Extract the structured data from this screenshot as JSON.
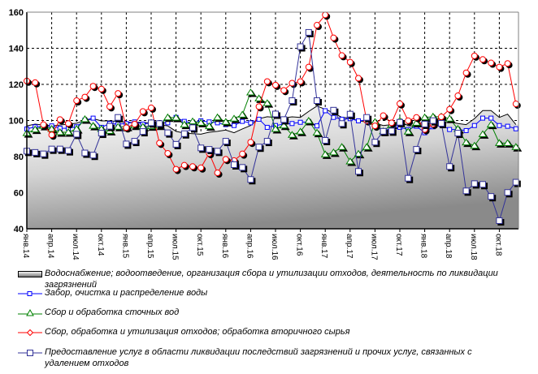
{
  "chart_data": {
    "type": "line",
    "title": "",
    "xlabel": "",
    "ylabel": "",
    "ylim": [
      40,
      160
    ],
    "yticks": [
      40,
      60,
      80,
      100,
      120,
      140,
      160
    ],
    "grid": true,
    "legend_position": "bottom",
    "x_tick_labels": [
      "янв.14",
      "апр.14",
      "июл.14",
      "окт.14",
      "янв.15",
      "апр.15",
      "июл.15",
      "окт.15",
      "янв.16",
      "апр.16",
      "июл.16",
      "окт.16",
      "янв.17",
      "апр.17",
      "июл.17",
      "окт.17",
      "янв.18",
      "апр.18",
      "июл.18",
      "окт.18"
    ],
    "x_count": 60,
    "series": [
      {
        "name": "Водоснабжение; водоотведение, организация сбора и утилизации отходов, деятельность по ликвидации загрязнений",
        "kind": "area",
        "color": "#999999",
        "values": [
          97,
          98,
          97.5,
          97,
          97.5,
          98,
          98.5,
          100,
          101,
          99.8,
          99.8,
          99.5,
          99,
          99,
          99,
          98.5,
          97.7,
          97,
          94,
          93,
          92.7,
          92.4,
          93.5,
          94,
          94.7,
          93.2,
          95.3,
          97.2,
          101,
          102.1,
          101.7,
          101.4,
          102,
          101.7,
          105,
          108,
          106.2,
          104.2,
          101.7,
          101.4,
          99.8,
          99.2,
          98.6,
          97.2,
          97.7,
          99.5,
          97.2,
          96.8,
          100.2,
          101,
          98.3,
          99.2,
          98.3,
          97.7,
          101,
          105.5,
          105.5,
          101.7,
          103.5,
          97.7
        ]
      },
      {
        "name": "Забор, очистка и распределение воды",
        "kind": "line",
        "marker": "small-square",
        "color": "#0000ff",
        "values": [
          95.3,
          96.5,
          96.8,
          97,
          95.7,
          95.7,
          96.5,
          100.2,
          101.3,
          96.2,
          98.3,
          98,
          98.3,
          99.2,
          98,
          98.7,
          98.7,
          98.7,
          101.7,
          99.5,
          98.7,
          99.8,
          99.2,
          98.7,
          97.7,
          97.2,
          99.5,
          98.7,
          100.7,
          96.2,
          97.2,
          98,
          98.3,
          99,
          99.2,
          97,
          105.4,
          101.7,
          100.7,
          101,
          99.8,
          100.2,
          97,
          94.2,
          95.6,
          96.2,
          95,
          96.8,
          93.2,
          96.5,
          97.7,
          95,
          95,
          94.4,
          97.2,
          101.3,
          101.3,
          97.2,
          96.8,
          95.4
        ]
      },
      {
        "name": "Сбор и обработка сточных вод",
        "kind": "line",
        "marker": "triangle",
        "color": "#008000",
        "values": [
          93,
          95,
          97,
          95.3,
          93.5,
          93.5,
          95.3,
          100.7,
          97,
          95.3,
          94.2,
          96.5,
          96.5,
          97.2,
          96.5,
          96.8,
          97.2,
          101.7,
          101.5,
          97.7,
          99.5,
          98.7,
          96.8,
          101.7,
          99.2,
          101,
          103.2,
          115.5,
          112.2,
          109.6,
          95.3,
          97.2,
          92,
          93.8,
          99.8,
          93.2,
          81.2,
          82.3,
          85.3,
          77.3,
          81.5,
          85.3,
          99.2,
          94,
          97.7,
          99.9,
          93.8,
          98.7,
          101.7,
          102.1,
          102.1,
          101,
          95.3,
          87.8,
          86,
          92.4,
          97.7,
          87.5,
          87.5,
          85.3
        ]
      },
      {
        "name": "Сбор, обработка и утилизация отходов; обработка вторичного сырья",
        "kind": "line",
        "marker": "circle",
        "color": "#ff0000",
        "values": [
          121.9,
          121,
          97.7,
          92,
          100.5,
          98.3,
          111,
          113,
          119,
          117.4,
          107.7,
          115,
          96,
          98,
          105,
          107,
          87.5,
          81.8,
          73,
          75.2,
          74.5,
          73.8,
          81.8,
          71,
          78.5,
          77.8,
          81.5,
          88,
          107.7,
          121.6,
          119.6,
          116.7,
          120.7,
          121.6,
          129.6,
          152.8,
          158.5,
          145.8,
          136,
          132.3,
          123.4,
          99.9,
          97,
          102.7,
          98.7,
          109.3,
          99.9,
          101.7,
          95,
          98,
          102,
          106.2,
          113.7,
          126.4,
          135.8,
          133.8,
          131.9,
          129.6,
          131.6,
          109.2
        ]
      },
      {
        "name": "Предоставление услуг в области ликвидации последствий загрязнений и прочих услуг, связанных с удалением отходов",
        "kind": "line",
        "marker": "large-square",
        "color": "#333399",
        "values": [
          83,
          82.3,
          81.5,
          84.2,
          84.2,
          83.3,
          92.4,
          82,
          80.8,
          93,
          96.8,
          101.7,
          87,
          88.5,
          93.9,
          98.7,
          98.3,
          93.2,
          86.8,
          92.7,
          96,
          84.8,
          84,
          83,
          88.5,
          75.5,
          74,
          67.3,
          85.3,
          88.5,
          103.6,
          100.5,
          111,
          140.9,
          148.8,
          111,
          89,
          105.7,
          98.3,
          103.5,
          71.8,
          101.7,
          88,
          94,
          94.2,
          99,
          68,
          84,
          98,
          99.9,
          98.4,
          74.5,
          93,
          61,
          65,
          64.6,
          57.9,
          44.5,
          60.1,
          65.8
        ]
      }
    ]
  },
  "legend": [
    "Водоснабжение; водоотведение, организация сбора и утилизации отходов, деятельность по ликвидации загрязнений",
    "Забор, очистка и распределение воды",
    "Сбор и обработка сточных вод",
    "Сбор, обработка и утилизация отходов; обработка вторичного сырья",
    "Предоставление услуг в области ликвидации последствий загрязнений и прочих услуг, связанных с удалением отходов"
  ]
}
